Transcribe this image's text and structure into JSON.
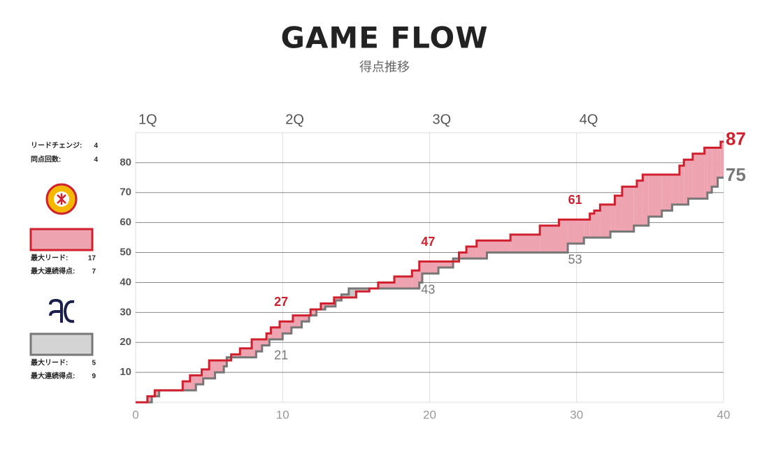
{
  "chart_data": {
    "type": "step",
    "title": "GAME FLOW",
    "subtitle": "得点推移",
    "xlim": [
      0,
      40
    ],
    "xticks": [
      0,
      10,
      20,
      30,
      40
    ],
    "ylim": [
      0,
      90
    ],
    "yticks": [
      10,
      20,
      30,
      40,
      50,
      60,
      70,
      80
    ],
    "grid": true,
    "periods": [
      {
        "value": 0,
        "label": "1Q"
      },
      {
        "value": 10,
        "label": "2Q"
      },
      {
        "value": 20,
        "label": "3Q"
      },
      {
        "value": 30,
        "label": "4Q"
      }
    ],
    "series": [
      {
        "color": "#d0202e",
        "fill": "#eda4b0",
        "x": [
          0,
          0.8,
          1.3,
          3.2,
          3.7,
          4.5,
          5.0,
          6.5,
          7.1,
          7.9,
          8.9,
          9.2,
          9.8,
          10.7,
          11.9,
          12.6,
          13.5,
          15.0,
          15.9,
          16.5,
          17.6,
          18.8,
          19.3,
          22.0,
          22.5,
          23.2,
          25.5,
          27.5,
          28.8,
          30.9,
          31.2,
          31.6,
          32.6,
          33.1,
          34.1,
          34.5,
          37.0,
          37.3,
          37.9,
          38.7,
          39.8
        ],
        "values": [
          0,
          2,
          4,
          7,
          9,
          11,
          14,
          16,
          18,
          21,
          23,
          25,
          27,
          29,
          31,
          33,
          35,
          37,
          38,
          40,
          42,
          44,
          47,
          50,
          52,
          54,
          56,
          59,
          61,
          63,
          64,
          66,
          69,
          72,
          74,
          76,
          79,
          81,
          83,
          85,
          87
        ],
        "labels": [
          {
            "x": 9.9,
            "value": 27
          },
          {
            "x": 19.9,
            "value": 47
          },
          {
            "x": 29.9,
            "value": 61
          }
        ]
      },
      {
        "color": "#777777",
        "fill": "#c8c8c8",
        "x": [
          0,
          1.1,
          1.6,
          4.1,
          4.6,
          5.4,
          6.0,
          6.2,
          8.2,
          8.6,
          9.1,
          10.0,
          10.6,
          11.3,
          11.8,
          12.3,
          12.9,
          13.6,
          14.0,
          14.5,
          19.3,
          19.5,
          20.6,
          21.6,
          23.9,
          29.4,
          30.5,
          32.3,
          33.9,
          34.9,
          35.8,
          36.5,
          37.6,
          38.9,
          39.2,
          39.6
        ],
        "values": [
          0,
          2,
          4,
          6,
          8,
          10,
          12,
          15,
          17,
          19,
          21,
          23,
          25,
          27,
          29,
          31,
          32,
          34,
          36,
          38,
          40,
          43,
          45,
          48,
          50,
          53,
          55,
          57,
          59,
          62,
          64,
          66,
          68,
          70,
          72,
          75
        ],
        "labels": [
          {
            "x": 9.9,
            "value": 21
          },
          {
            "x": 19.9,
            "value": 43
          },
          {
            "x": 29.9,
            "value": 53
          }
        ]
      }
    ]
  },
  "sidebar": {
    "lead_changes": {
      "label": "リードチェンジ:",
      "value": "4"
    },
    "ties": {
      "label": "同点回数:",
      "value": "4"
    },
    "home": {
      "max_lead": {
        "label": "最大リード:",
        "value": "17"
      },
      "max_run": {
        "label": "最大連続得点:",
        "value": "7"
      }
    },
    "away": {
      "max_lead": {
        "label": "最大リード:",
        "value": "5"
      },
      "max_run": {
        "label": "最大連続得点:",
        "value": "9"
      }
    }
  }
}
